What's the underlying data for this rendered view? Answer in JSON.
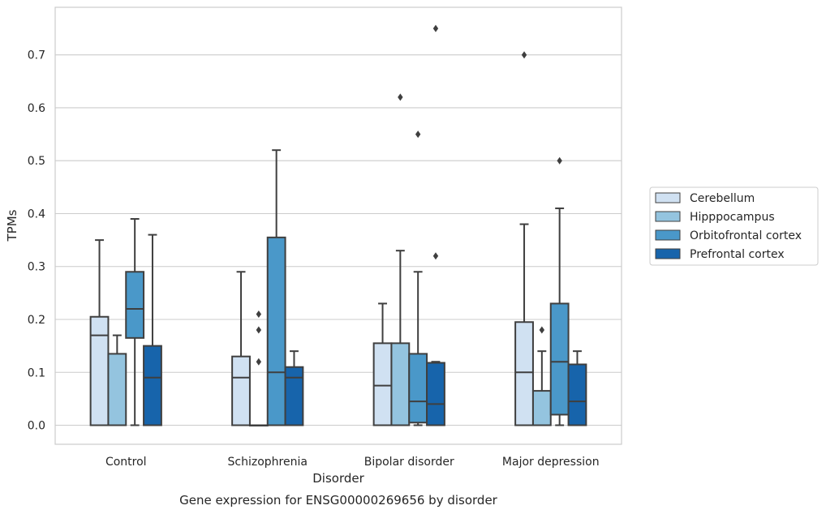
{
  "chart_data": {
    "type": "box",
    "title": "",
    "caption": "Gene expression for ENSG00000269656 by disorder",
    "xlabel": "Disorder",
    "ylabel": "TPMs",
    "ylim": [
      -0.036,
      0.79
    ],
    "yticks": [
      0.0,
      0.1,
      0.2,
      0.3,
      0.4,
      0.5,
      0.6,
      0.7
    ],
    "yticklabels": [
      "0.0",
      "0.1",
      "0.2",
      "0.3",
      "0.4",
      "0.5",
      "0.6",
      "0.7"
    ],
    "grid": true,
    "legend_position": "right",
    "categories": [
      "Control",
      "Schizophrenia",
      "Bipolar disorder",
      "Major depression"
    ],
    "series": [
      {
        "name": "Cerebellum",
        "color": "#d0e1f2",
        "boxes": [
          {
            "whislo": 0.0,
            "q1": 0.0,
            "med": 0.17,
            "q3": 0.205,
            "whishi": 0.35,
            "fliers": []
          },
          {
            "whislo": 0.0,
            "q1": 0.0,
            "med": 0.09,
            "q3": 0.13,
            "whishi": 0.29,
            "fliers": []
          },
          {
            "whislo": 0.0,
            "q1": 0.0,
            "med": 0.075,
            "q3": 0.155,
            "whishi": 0.23,
            "fliers": []
          },
          {
            "whislo": 0.0,
            "q1": 0.0,
            "med": 0.1,
            "q3": 0.195,
            "whishi": 0.38,
            "fliers": [
              0.7
            ]
          }
        ]
      },
      {
        "name": "Hipppocampus",
        "color": "#94c4df",
        "boxes": [
          {
            "whislo": 0.0,
            "q1": 0.0,
            "med": 0.0,
            "q3": 0.135,
            "whishi": 0.17,
            "fliers": []
          },
          {
            "whislo": 0.0,
            "q1": 0.0,
            "med": 0.0,
            "q3": 0.0,
            "whishi": 0.0,
            "fliers": [
              0.12,
              0.18,
              0.21
            ]
          },
          {
            "whislo": 0.0,
            "q1": 0.0,
            "med": 0.0,
            "q3": 0.155,
            "whishi": 0.33,
            "fliers": [
              0.62
            ]
          },
          {
            "whislo": 0.0,
            "q1": 0.0,
            "med": 0.0,
            "q3": 0.065,
            "whishi": 0.14,
            "fliers": [
              0.18
            ]
          }
        ]
      },
      {
        "name": "Orbitofrontal cortex",
        "color": "#4a98c9",
        "boxes": [
          {
            "whislo": 0.0,
            "q1": 0.165,
            "med": 0.22,
            "q3": 0.29,
            "whishi": 0.39,
            "fliers": []
          },
          {
            "whislo": 0.0,
            "q1": 0.0,
            "med": 0.1,
            "q3": 0.355,
            "whishi": 0.52,
            "fliers": []
          },
          {
            "whislo": 0.0,
            "q1": 0.005,
            "med": 0.045,
            "q3": 0.135,
            "whishi": 0.29,
            "fliers": [
              0.55
            ]
          },
          {
            "whislo": 0.0,
            "q1": 0.02,
            "med": 0.12,
            "q3": 0.23,
            "whishi": 0.41,
            "fliers": [
              0.5
            ]
          }
        ]
      },
      {
        "name": "Prefrontal cortex",
        "color": "#1764ab",
        "boxes": [
          {
            "whislo": 0.0,
            "q1": 0.0,
            "med": 0.09,
            "q3": 0.15,
            "whishi": 0.36,
            "fliers": []
          },
          {
            "whislo": 0.0,
            "q1": 0.0,
            "med": 0.09,
            "q3": 0.11,
            "whishi": 0.14,
            "fliers": []
          },
          {
            "whislo": 0.0,
            "q1": 0.0,
            "med": 0.04,
            "q3": 0.118,
            "whishi": 0.12,
            "fliers": [
              0.32,
              0.75
            ]
          },
          {
            "whislo": 0.0,
            "q1": 0.0,
            "med": 0.045,
            "q3": 0.115,
            "whishi": 0.14,
            "fliers": []
          }
        ]
      }
    ]
  }
}
